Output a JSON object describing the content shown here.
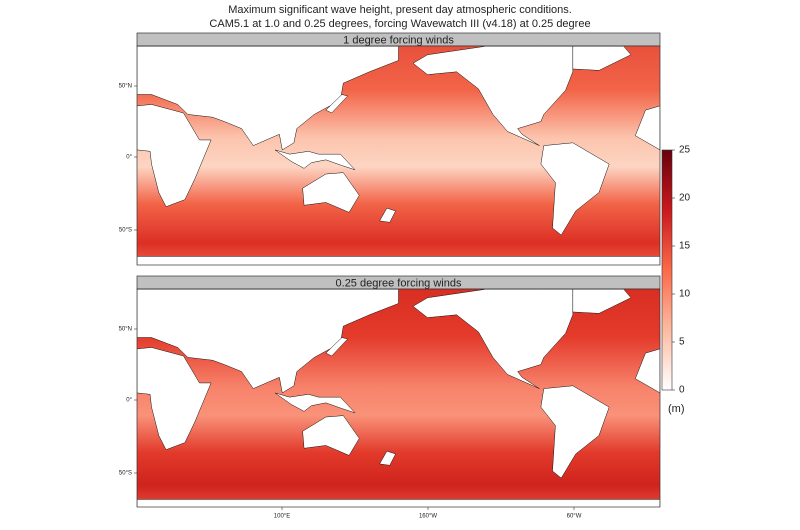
{
  "title": [
    "Maximum significant wave height, present day atmospheric conditions.",
    "CAM5.1 at 1.0 and 0.25 degrees, forcing Wavewatch III (v4.18) at 0.25 degree"
  ],
  "panels": [
    {
      "title": "1 degree forcing winds"
    },
    {
      "title": "0.25 degree forcing winds"
    }
  ],
  "lat_labels": [
    "50°N",
    "0°",
    "50°S"
  ],
  "lon_labels": [
    "100°E",
    "160°W",
    "60°W"
  ],
  "colorbar": {
    "lim": [
      0,
      25
    ],
    "ticks": [
      0,
      5,
      10,
      15,
      20,
      25
    ],
    "label": "(m)",
    "colors": [
      "#ffffff",
      "#fcbba1",
      "#fb6a4a",
      "#cb181d",
      "#67000d"
    ]
  }
}
